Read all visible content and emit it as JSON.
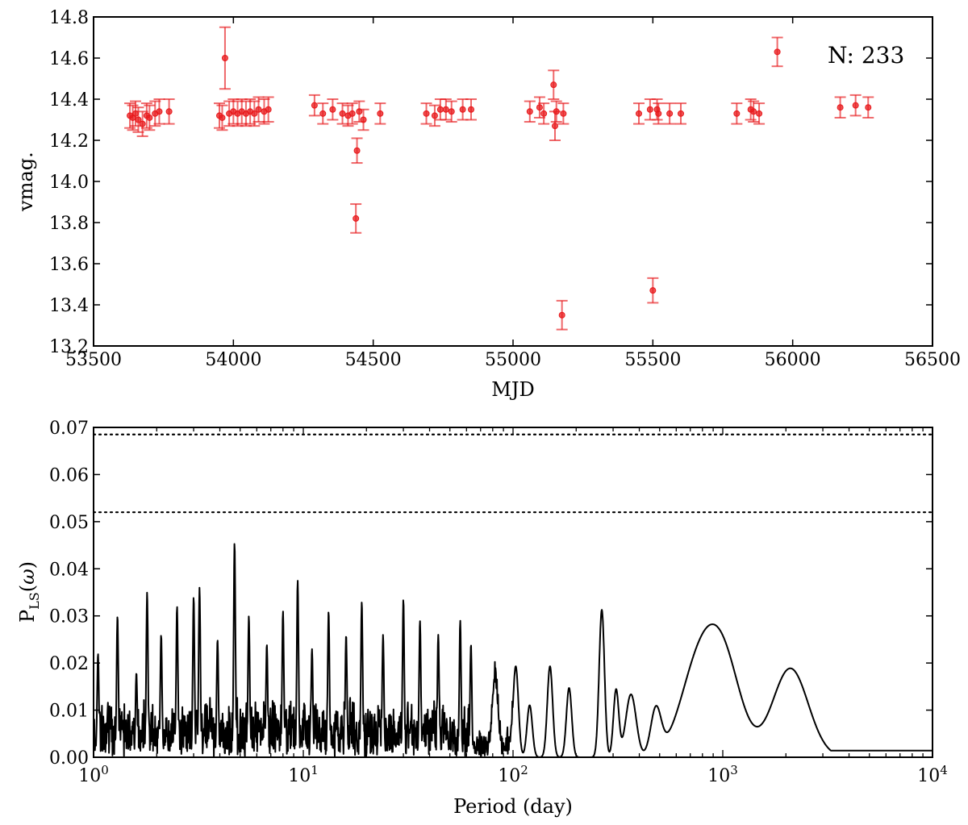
{
  "chart_data": [
    {
      "type": "scatter",
      "xlabel": "MJD",
      "ylabel": "vmag.",
      "xlim": [
        53500,
        56500
      ],
      "ylim": [
        13.2,
        14.8
      ],
      "xticks": [
        53500,
        54000,
        54500,
        55000,
        55500,
        56000,
        56500
      ],
      "yticks": [
        13.2,
        13.4,
        13.6,
        13.8,
        14.0,
        14.2,
        14.4,
        14.6,
        14.8
      ],
      "xtick_labels": [
        "53500",
        "54000",
        "54500",
        "55000",
        "55500",
        "56000",
        "56500"
      ],
      "ytick_labels": [
        "13.2",
        "13.4",
        "13.6",
        "13.8",
        "14.0",
        "14.2",
        "14.4",
        "14.6",
        "14.8"
      ],
      "annotation": "N: 233",
      "color": "#e8191c",
      "grid": false,
      "points": [
        {
          "x": 53630,
          "y": 14.32,
          "err": 0.06
        },
        {
          "x": 53640,
          "y": 14.31,
          "err": 0.06
        },
        {
          "x": 53650,
          "y": 14.33,
          "err": 0.06
        },
        {
          "x": 53660,
          "y": 14.3,
          "err": 0.06
        },
        {
          "x": 53675,
          "y": 14.28,
          "err": 0.06
        },
        {
          "x": 53690,
          "y": 14.32,
          "err": 0.06
        },
        {
          "x": 53700,
          "y": 14.31,
          "err": 0.06
        },
        {
          "x": 53720,
          "y": 14.33,
          "err": 0.06
        },
        {
          "x": 53735,
          "y": 14.34,
          "err": 0.06
        },
        {
          "x": 53770,
          "y": 14.34,
          "err": 0.06
        },
        {
          "x": 53950,
          "y": 14.32,
          "err": 0.06
        },
        {
          "x": 53960,
          "y": 14.31,
          "err": 0.06
        },
        {
          "x": 53970,
          "y": 14.6,
          "err": 0.15
        },
        {
          "x": 53985,
          "y": 14.33,
          "err": 0.06
        },
        {
          "x": 54000,
          "y": 14.34,
          "err": 0.06
        },
        {
          "x": 54015,
          "y": 14.33,
          "err": 0.06
        },
        {
          "x": 54030,
          "y": 14.34,
          "err": 0.06
        },
        {
          "x": 54045,
          "y": 14.33,
          "err": 0.06
        },
        {
          "x": 54060,
          "y": 14.34,
          "err": 0.06
        },
        {
          "x": 54075,
          "y": 14.33,
          "err": 0.06
        },
        {
          "x": 54090,
          "y": 14.35,
          "err": 0.06
        },
        {
          "x": 54110,
          "y": 14.34,
          "err": 0.06
        },
        {
          "x": 54125,
          "y": 14.35,
          "err": 0.06
        },
        {
          "x": 54290,
          "y": 14.37,
          "err": 0.05
        },
        {
          "x": 54320,
          "y": 14.33,
          "err": 0.05
        },
        {
          "x": 54355,
          "y": 14.35,
          "err": 0.05
        },
        {
          "x": 54390,
          "y": 14.33,
          "err": 0.05
        },
        {
          "x": 54410,
          "y": 14.32,
          "err": 0.05
        },
        {
          "x": 54425,
          "y": 14.33,
          "err": 0.05
        },
        {
          "x": 54438,
          "y": 13.82,
          "err": 0.07
        },
        {
          "x": 54442,
          "y": 14.15,
          "err": 0.06
        },
        {
          "x": 54450,
          "y": 14.34,
          "err": 0.05
        },
        {
          "x": 54465,
          "y": 14.3,
          "err": 0.05
        },
        {
          "x": 54525,
          "y": 14.33,
          "err": 0.05
        },
        {
          "x": 54690,
          "y": 14.33,
          "err": 0.05
        },
        {
          "x": 54720,
          "y": 14.32,
          "err": 0.05
        },
        {
          "x": 54740,
          "y": 14.35,
          "err": 0.05
        },
        {
          "x": 54760,
          "y": 14.35,
          "err": 0.05
        },
        {
          "x": 54780,
          "y": 14.34,
          "err": 0.05
        },
        {
          "x": 54820,
          "y": 14.35,
          "err": 0.05
        },
        {
          "x": 54850,
          "y": 14.35,
          "err": 0.05
        },
        {
          "x": 55060,
          "y": 14.34,
          "err": 0.05
        },
        {
          "x": 55095,
          "y": 14.36,
          "err": 0.05
        },
        {
          "x": 55110,
          "y": 14.33,
          "err": 0.05
        },
        {
          "x": 55145,
          "y": 14.47,
          "err": 0.07
        },
        {
          "x": 55150,
          "y": 14.27,
          "err": 0.07
        },
        {
          "x": 55155,
          "y": 14.34,
          "err": 0.05
        },
        {
          "x": 55175,
          "y": 13.35,
          "err": 0.07
        },
        {
          "x": 55180,
          "y": 14.33,
          "err": 0.05
        },
        {
          "x": 55450,
          "y": 14.33,
          "err": 0.05
        },
        {
          "x": 55490,
          "y": 14.35,
          "err": 0.05
        },
        {
          "x": 55500,
          "y": 13.47,
          "err": 0.06
        },
        {
          "x": 55515,
          "y": 14.35,
          "err": 0.05
        },
        {
          "x": 55520,
          "y": 14.33,
          "err": 0.05
        },
        {
          "x": 55560,
          "y": 14.33,
          "err": 0.05
        },
        {
          "x": 55600,
          "y": 14.33,
          "err": 0.05
        },
        {
          "x": 55800,
          "y": 14.33,
          "err": 0.05
        },
        {
          "x": 55850,
          "y": 14.35,
          "err": 0.05
        },
        {
          "x": 55860,
          "y": 14.34,
          "err": 0.05
        },
        {
          "x": 55880,
          "y": 14.33,
          "err": 0.05
        },
        {
          "x": 55945,
          "y": 14.63,
          "err": 0.07
        },
        {
          "x": 56170,
          "y": 14.36,
          "err": 0.05
        },
        {
          "x": 56225,
          "y": 14.37,
          "err": 0.05
        },
        {
          "x": 56270,
          "y": 14.36,
          "err": 0.05
        }
      ]
    },
    {
      "type": "line",
      "xlabel": "Period (day)",
      "ylabel": "P_LS(ω)",
      "xscale": "log",
      "xlim": [
        1,
        10000
      ],
      "ylim": [
        0,
        0.07
      ],
      "xtick_labels": [
        {
          "base": "10",
          "exp": "0",
          "value": 1
        },
        {
          "base": "10",
          "exp": "1",
          "value": 10
        },
        {
          "base": "10",
          "exp": "2",
          "value": 100
        },
        {
          "base": "10",
          "exp": "3",
          "value": 1000
        },
        {
          "base": "10",
          "exp": "4",
          "value": 10000
        }
      ],
      "yticks": [
        0,
        0.01,
        0.02,
        0.03,
        0.04,
        0.05,
        0.06,
        0.07
      ],
      "ytick_labels": [
        "0.00",
        "0.01",
        "0.02",
        "0.03",
        "0.04",
        "0.05",
        "0.06",
        "0.07"
      ],
      "hlines": [
        0.0685,
        0.052
      ],
      "grid": false,
      "peaks": [
        [
          1.05,
          0.022
        ],
        [
          1.3,
          0.03
        ],
        [
          1.6,
          0.018
        ],
        [
          1.8,
          0.035
        ],
        [
          2.1,
          0.026
        ],
        [
          2.5,
          0.032
        ],
        [
          3.0,
          0.034
        ],
        [
          3.2,
          0.036
        ],
        [
          3.9,
          0.025
        ],
        [
          4.7,
          0.0455
        ],
        [
          5.5,
          0.03
        ],
        [
          6.7,
          0.024
        ],
        [
          8.0,
          0.031
        ],
        [
          9.4,
          0.0375
        ],
        [
          11.0,
          0.023
        ],
        [
          13.2,
          0.031
        ],
        [
          16.0,
          0.026
        ],
        [
          19.0,
          0.033
        ],
        [
          24.0,
          0.026
        ],
        [
          30.0,
          0.0335
        ],
        [
          36.0,
          0.029
        ],
        [
          44.0,
          0.026
        ],
        [
          56.0,
          0.029
        ],
        [
          63.0,
          0.024
        ]
      ],
      "smooth_peaks": [
        [
          82,
          0.017
        ],
        [
          103,
          0.021
        ],
        [
          120,
          0.012
        ],
        [
          150,
          0.021
        ],
        [
          185,
          0.016
        ],
        [
          265,
          0.034
        ],
        [
          310,
          0.0155
        ],
        [
          365,
          0.0145
        ],
        [
          480,
          0.0105
        ],
        [
          750,
          0.018
        ],
        [
          1000,
          0.022
        ],
        [
          2100,
          0.0205
        ]
      ]
    }
  ]
}
